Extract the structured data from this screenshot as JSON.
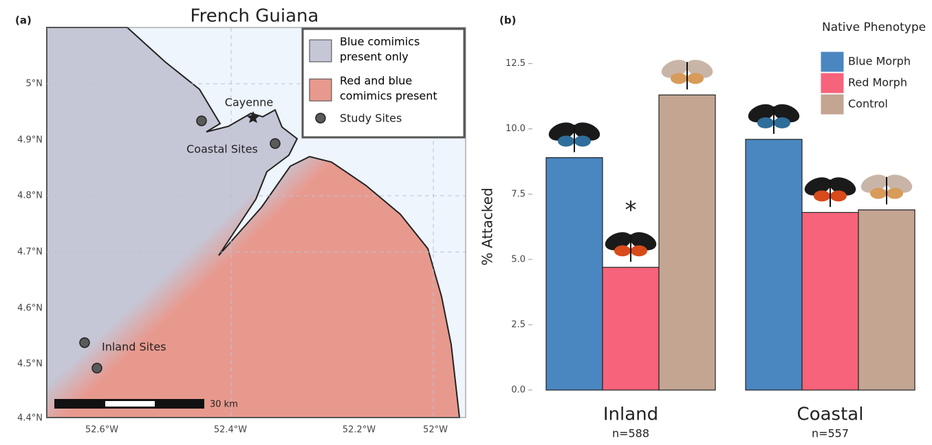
{
  "chart_data": {
    "type": "bar",
    "panel_label": "(b)",
    "ylabel": "% Attacked",
    "categories": [
      "Inland",
      "Coastal"
    ],
    "sample_sizes": [
      "n=588",
      "n=557"
    ],
    "legend_title": "Native Phenotype",
    "series": [
      {
        "name": "Blue Morph",
        "color": "#4a86c0",
        "values": [
          8.9,
          9.6
        ]
      },
      {
        "name": "Red Morph",
        "color": "#f7637a",
        "values": [
          4.7,
          6.8
        ]
      },
      {
        "name": "Control",
        "color": "#c3a592",
        "values": [
          11.3,
          6.9
        ]
      }
    ],
    "ylim": [
      0,
      13.2
    ],
    "yticks": [
      {
        "value": 0,
        "label": "0.0"
      },
      2.5,
      {
        "value": 5,
        "label": "5.0"
      },
      7.5,
      {
        "value": 10,
        "label": "10.0"
      },
      12.5
    ],
    "annotation": "*"
  },
  "map": {
    "title": "French Guiana",
    "panel_label": "(a)",
    "xtick_labels": [
      "52.6°W",
      "52.4°W",
      "52.2°W",
      "52°W"
    ],
    "ytick_labels": [
      "5°N",
      "4.9°N",
      "4.8°N",
      "4.7°N",
      "4.6°N",
      "4.5°N",
      "4.4°N"
    ],
    "legend": [
      "Blue comimics present only",
      "Red and blue comimics present",
      "Study Sites"
    ],
    "places": [
      "Cayenne",
      "Coastal Sites",
      "Inland Sites"
    ],
    "scale_label": "30 km"
  }
}
